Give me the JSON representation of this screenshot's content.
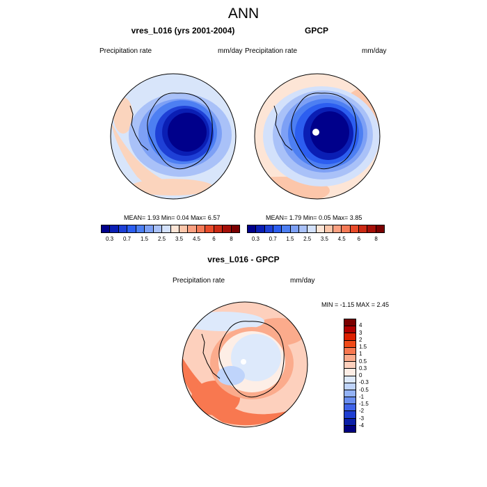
{
  "title": "ANN",
  "panels": {
    "model": {
      "title": "vres_L016 (yrs 2001-2004)",
      "left_label": "Precipitation rate",
      "right_label": "mm/day",
      "stats": "MEAN=   1.93  Min=   0.04  Max=   6.57"
    },
    "obs": {
      "title": "GPCP",
      "left_label": "Precipitation rate",
      "right_label": "mm/day",
      "stats": "MEAN=   1.79  Min=   0.05  Max=   3.85"
    },
    "diff": {
      "title": "vres_L016 - GPCP",
      "left_label": "Precipitation rate",
      "right_label": "mm/day",
      "stats": "MIN =  -1.15 MAX =   2.45"
    }
  },
  "colorbar_abs": {
    "colors": [
      "#00008b",
      "#0a1eb4",
      "#1e40d6",
      "#2c5ef0",
      "#4d7ff2",
      "#7da0f5",
      "#a9c1f8",
      "#d3e1fb",
      "#fde5d6",
      "#fcc6aa",
      "#faa081",
      "#f47a57",
      "#e84b2a",
      "#cc2a14",
      "#a50f08",
      "#7a0000"
    ],
    "ticks": [
      "0.3",
      "0.7",
      "1.5",
      "2.5",
      "3.5",
      "4.5",
      "6",
      "8"
    ]
  },
  "colorbar_diff": {
    "colors": [
      "#7a0000",
      "#b00000",
      "#dd2000",
      "#f04a18",
      "#f87850",
      "#fbab8c",
      "#fdd0bd",
      "#fdeee6",
      "#dde9fb",
      "#bfd4fb",
      "#93b2f5",
      "#6a8ef0",
      "#3f63e8",
      "#1e3ed2",
      "#0b1fa8",
      "#000080"
    ],
    "ticks": [
      "4",
      "3",
      "2",
      "1.5",
      "1",
      "0.5",
      "0.3",
      "0",
      "-0.3",
      "-0.5",
      "-1",
      "-1.5",
      "-2",
      "-3",
      "-4"
    ]
  }
}
